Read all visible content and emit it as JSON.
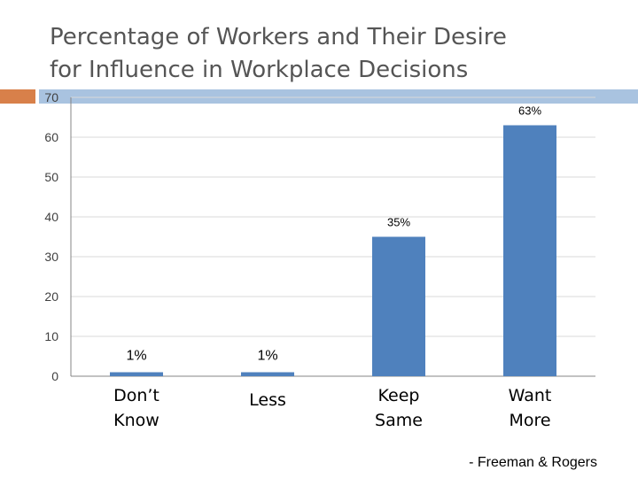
{
  "slide": {
    "title": "Percentage of Workers and Their Desire\nfor Influence in Workplace Decisions",
    "source": "- Freeman & Rogers"
  },
  "colors": {
    "bar": "#4f81bd",
    "accent_orange": "#d8804a",
    "accent_blue": "#a9c3e0"
  },
  "chart_data": {
    "type": "bar",
    "categories": [
      "Don’t Know",
      "Less",
      "Keep Same",
      "Want More"
    ],
    "values": [
      1,
      1,
      35,
      63
    ],
    "data_labels": [
      "1%",
      "1%",
      "35%",
      "63%"
    ],
    "y_ticks": [
      0,
      10,
      20,
      30,
      40,
      50,
      60,
      70
    ],
    "ylim": [
      0,
      70
    ],
    "grid": true,
    "legend": "none"
  }
}
